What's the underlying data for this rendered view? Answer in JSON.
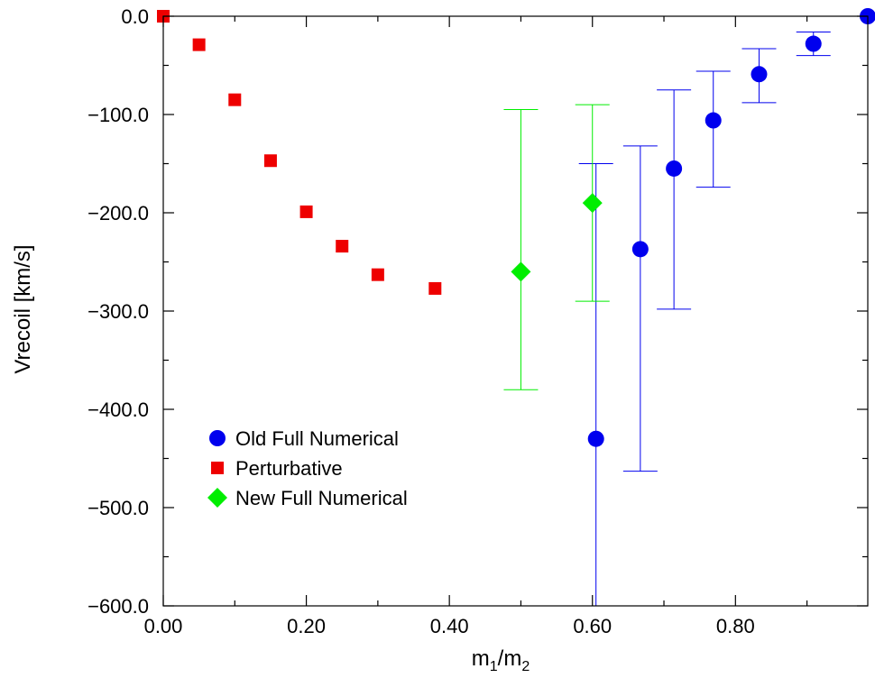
{
  "chart_data": {
    "type": "scatter",
    "xlabel": {
      "base": "m",
      "sub1": "1",
      "sep": "/m",
      "sub2": "2"
    },
    "ylabel": "Vrecoil [km/s]",
    "xlim": [
      0.0,
      0.985
    ],
    "ylim": [
      -600.0,
      0.0
    ],
    "x_ticks": [
      {
        "value": 0.0,
        "label": "0.00"
      },
      {
        "value": 0.2,
        "label": "0.20"
      },
      {
        "value": 0.4,
        "label": "0.40"
      },
      {
        "value": 0.6,
        "label": "0.60"
      },
      {
        "value": 0.8,
        "label": "0.80"
      }
    ],
    "y_ticks": [
      {
        "value": 0.0,
        "label": "0.0"
      },
      {
        "value": -100.0,
        "label": "−100.0"
      },
      {
        "value": -200.0,
        "label": "−200.0"
      },
      {
        "value": -300.0,
        "label": "−300.0"
      },
      {
        "value": -400.0,
        "label": "−400.0"
      },
      {
        "value": -500.0,
        "label": "−500.0"
      },
      {
        "value": -600.0,
        "label": "−600.0"
      }
    ],
    "grid": false,
    "legend_position": "lower-left",
    "series": [
      {
        "name": "Old Full Numerical",
        "marker": "circle",
        "color": "#0000ee",
        "points": [
          {
            "x": 0.605,
            "y": -430,
            "err_low": -600,
            "err_high": -150
          },
          {
            "x": 0.667,
            "y": -237,
            "err_low": -463,
            "err_high": -132
          },
          {
            "x": 0.714,
            "y": -155,
            "err_low": -298,
            "err_high": -75
          },
          {
            "x": 0.769,
            "y": -106,
            "err_low": -174,
            "err_high": -56
          },
          {
            "x": 0.833,
            "y": -59,
            "err_low": -88,
            "err_high": -33
          },
          {
            "x": 0.909,
            "y": -28,
            "err_low": -40,
            "err_high": -16
          },
          {
            "x": 0.985,
            "y": 0,
            "err_low": null,
            "err_high": null
          }
        ]
      },
      {
        "name": "Perturbative",
        "marker": "square",
        "color": "#ee0000",
        "points": [
          {
            "x": 0.0,
            "y": 0
          },
          {
            "x": 0.05,
            "y": -29
          },
          {
            "x": 0.1,
            "y": -85
          },
          {
            "x": 0.15,
            "y": -147
          },
          {
            "x": 0.2,
            "y": -199
          },
          {
            "x": 0.25,
            "y": -234
          },
          {
            "x": 0.3,
            "y": -263
          },
          {
            "x": 0.38,
            "y": -277
          }
        ]
      },
      {
        "name": "New Full Numerical",
        "marker": "diamond",
        "color": "#00ee00",
        "points": [
          {
            "x": 0.5,
            "y": -260,
            "err_low": -380,
            "err_high": -95
          },
          {
            "x": 0.6,
            "y": -190,
            "err_low": -290,
            "err_high": -90
          }
        ]
      }
    ]
  }
}
